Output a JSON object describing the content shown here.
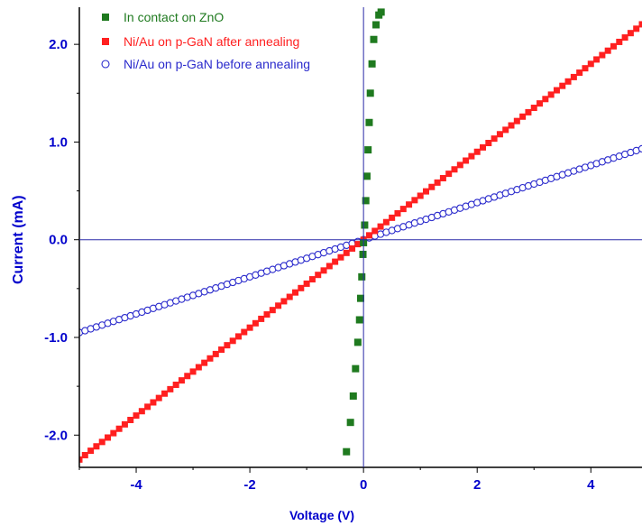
{
  "chart_data": {
    "type": "scatter",
    "xlabel": "Voltage (V)",
    "ylabel": "Current (mA)",
    "xlim": [
      -5,
      4.9
    ],
    "ylim": [
      -2.33,
      2.38
    ],
    "x_ticks": [
      -4,
      -2,
      0,
      2,
      4
    ],
    "x_tick_labels": [
      "-4",
      "-2",
      "0",
      "2",
      "4"
    ],
    "y_ticks": [
      -2.0,
      -1.0,
      0.0,
      1.0,
      2.0
    ],
    "y_tick_labels": [
      "-2.0",
      "-1.0",
      "0.0",
      "1.0",
      "2.0"
    ],
    "grid": false,
    "legend_position": "top-left",
    "series": [
      {
        "name": "In contact on ZnO",
        "marker": "filled-square",
        "color": "#1f7a1f",
        "x": [
          -0.3,
          -0.23,
          -0.18,
          -0.14,
          -0.1,
          -0.07,
          -0.05,
          -0.03,
          -0.01,
          0.0,
          0.02,
          0.04,
          0.06,
          0.08,
          0.1,
          0.12,
          0.15,
          0.18,
          0.22,
          0.27,
          0.31
        ],
        "y": [
          -2.17,
          -1.87,
          -1.6,
          -1.32,
          -1.05,
          -0.82,
          -0.6,
          -0.38,
          -0.15,
          -0.03,
          0.15,
          0.4,
          0.65,
          0.92,
          1.2,
          1.5,
          1.8,
          2.05,
          2.2,
          2.3,
          2.33
        ]
      },
      {
        "name": "Ni/Au on p-GaN after annealing",
        "marker": "filled-square",
        "color": "#ff2020",
        "x_start": -5,
        "x_end": 4.9,
        "x_step": 0.1,
        "slope_mA_per_V": 0.45,
        "intercept_mA": 0
      },
      {
        "name": "Ni/Au on p-GaN before annealing",
        "marker": "open-circle",
        "color": "#2a2acc",
        "x_start": -5,
        "x_end": 4.9,
        "x_step": 0.1,
        "slope_mA_per_V": 0.19,
        "intercept_mA": 0
      }
    ]
  }
}
